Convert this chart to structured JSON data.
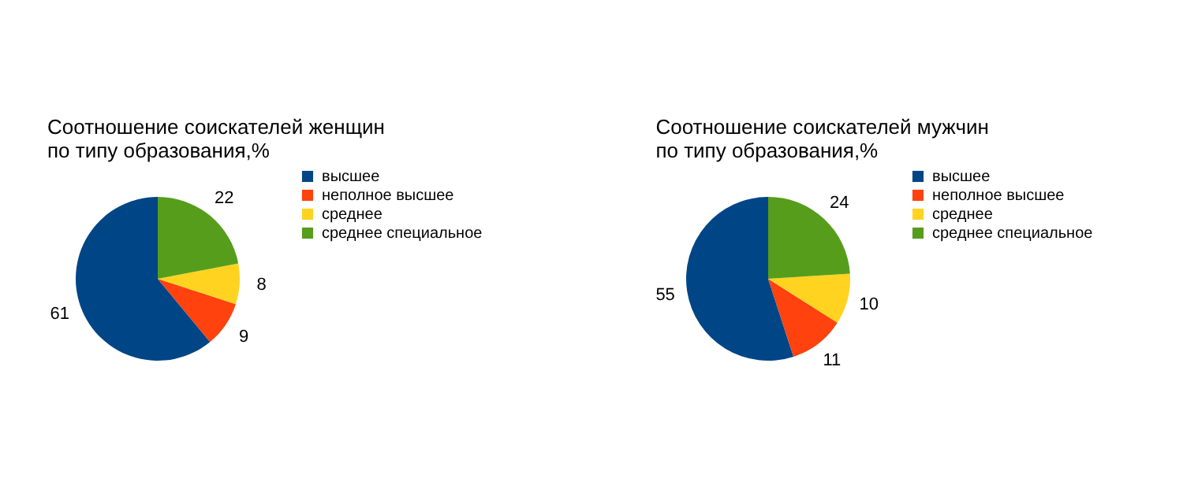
{
  "chart_data": [
    {
      "type": "pie",
      "title": "Соотношение соискателей женщин\nпо типу образования,%",
      "categories": [
        "высшее",
        "неполное высшее",
        "среднее",
        "среднее специальное"
      ],
      "values": [
        61,
        9,
        8,
        22
      ],
      "colors": [
        "#004586",
        "#ff420e",
        "#ffd320",
        "#579d1c"
      ],
      "data_labels": true,
      "legend": "right"
    },
    {
      "type": "pie",
      "title": "Соотношение соискателей мужчин\nпо типу образования,%",
      "categories": [
        "высшее",
        "неполное высшее",
        "среднее",
        "среднее специальное"
      ],
      "values": [
        55,
        11,
        10,
        24
      ],
      "colors": [
        "#004586",
        "#ff420e",
        "#ffd320",
        "#579d1c"
      ],
      "data_labels": true,
      "legend": "right"
    }
  ]
}
